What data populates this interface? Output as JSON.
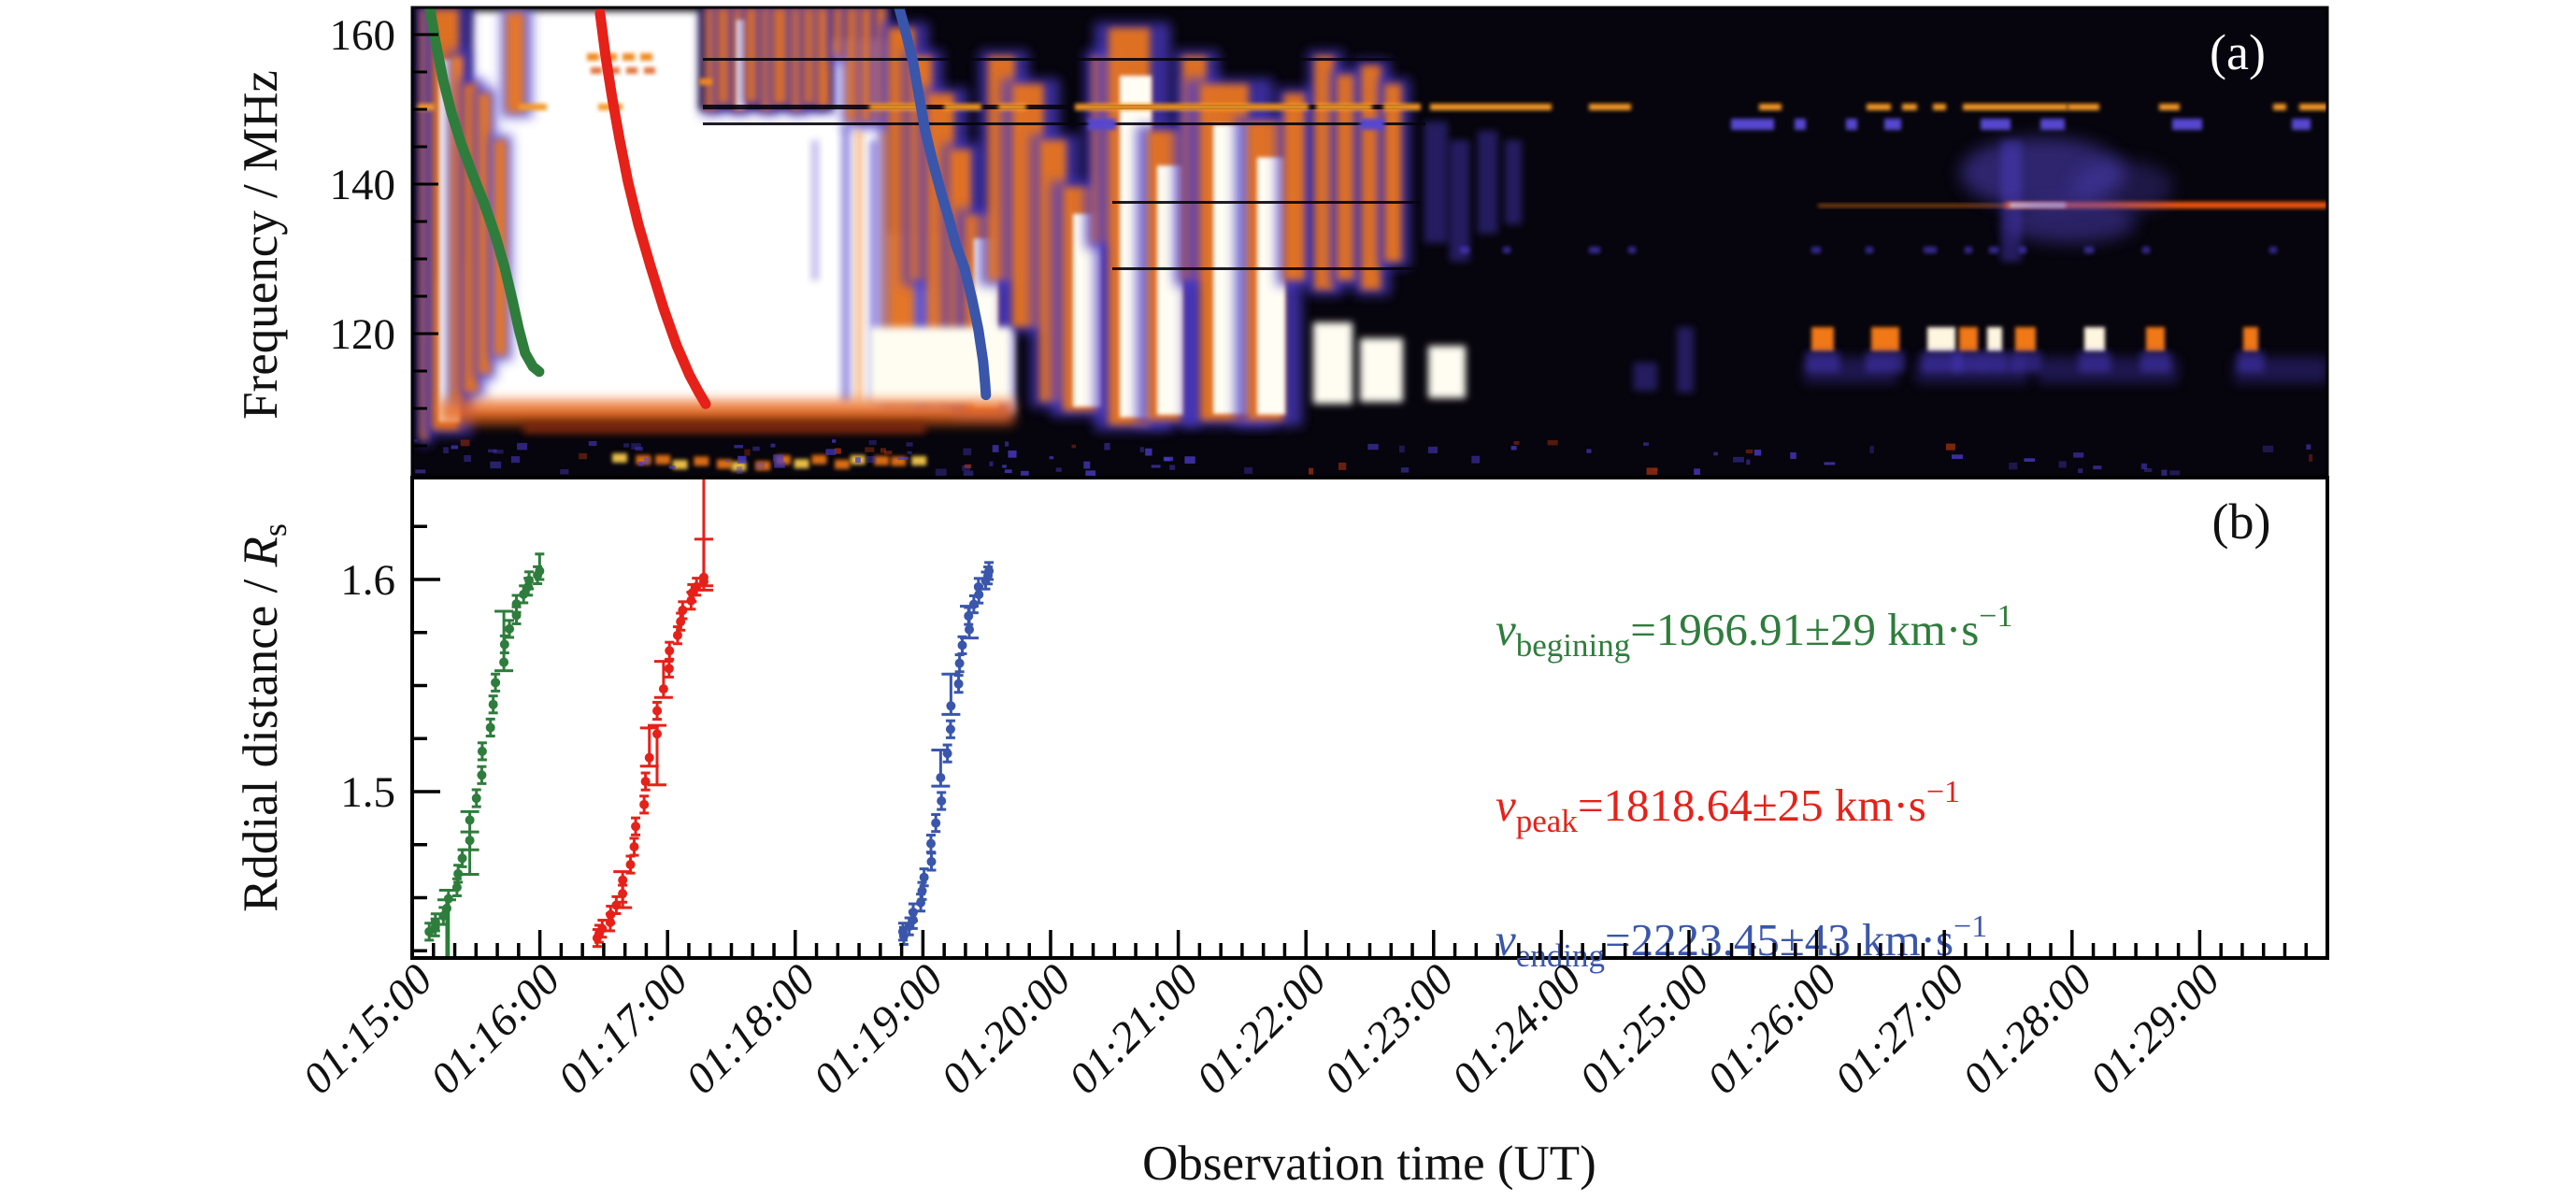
{
  "chart_data": {
    "type": "composite",
    "figure_kind": [
      "heatmap",
      "scatter"
    ],
    "x_axis": {
      "title": "Observation time (UT)",
      "start": "01:15:00",
      "end": "01:30:00",
      "tick_labels": [
        "01:15:00",
        "01:16:00",
        "01:17:00",
        "01:18:00",
        "01:19:00",
        "01:20:00",
        "01:21:00",
        "01:22:00",
        "01:23:00",
        "01:24:00",
        "01:25:00",
        "01:26:00",
        "01:27:00",
        "01:28:00",
        "01:29:00"
      ],
      "major_tick_interval_s": 60,
      "minor_tick_interval_s": 10
    },
    "panel_a": {
      "label": "(a)",
      "type": "heatmap",
      "ylabel": "Frequency / MHz",
      "y_tick_labels": [
        "160",
        "140",
        "120"
      ],
      "y_ticks": [
        160,
        140,
        120
      ],
      "y_minor_step_mhz": 5,
      "y_range_mhz": [
        100.8,
        163.6
      ],
      "grid": false,
      "tracks": [
        {
          "name": "beginning-track",
          "color": "#2e7d3c",
          "points_t_s_f_mhz": [
            [
              8.3,
              163.4
            ],
            [
              11,
              159.0
            ],
            [
              14.5,
              154.0
            ],
            [
              18.4,
              149.6
            ],
            [
              22.8,
              145.6
            ],
            [
              28.1,
              141.5
            ],
            [
              33.8,
              137.4
            ],
            [
              39.1,
              133.1
            ],
            [
              43.5,
              128.8
            ],
            [
              47,
              124.6
            ],
            [
              50.1,
              120.6
            ],
            [
              53.1,
              117.4
            ],
            [
              56.7,
              115.6
            ],
            [
              59.7,
              114.9
            ]
          ]
        },
        {
          "name": "peak-track",
          "color": "#e62119",
          "points_t_s_f_mhz": [
            [
              88.3,
              162.8
            ],
            [
              90.9,
              157.1
            ],
            [
              94,
              151.5
            ],
            [
              97.5,
              145.9
            ],
            [
              101.4,
              140.3
            ],
            [
              106.3,
              134.6
            ],
            [
              112,
              129.0
            ],
            [
              118.1,
              123.4
            ],
            [
              124.3,
              118.4
            ],
            [
              130.4,
              114.4
            ],
            [
              134.8,
              112.1
            ],
            [
              137.9,
              110.6
            ]
          ]
        },
        {
          "name": "ending-track",
          "color": "#3a56ab",
          "points_t_s_f_mhz": [
            [
              228.8,
              163.6
            ],
            [
              231.4,
              160.9
            ],
            [
              235.4,
              156.3
            ],
            [
              238,
              152.1
            ],
            [
              241.1,
              147.1
            ],
            [
              244.6,
              143.0
            ],
            [
              248.6,
              138.8
            ],
            [
              252.1,
              135.5
            ],
            [
              255.6,
              131.8
            ],
            [
              259.5,
              128.8
            ],
            [
              263.1,
              124.6
            ],
            [
              266.1,
              120.5
            ],
            [
              268.3,
              116.3
            ],
            [
              269.2,
              113.4
            ],
            [
              269.6,
              111.8
            ]
          ]
        }
      ]
    },
    "panel_b": {
      "label": "(b)",
      "type": "scatter",
      "ylabel_prefix": "Rddial distance / ",
      "ylabel_symbol": "R",
      "ylabel_symbol_sub": "s",
      "y_tick_labels": [
        "1.6",
        "1.5"
      ],
      "y_ticks": [
        1.6,
        1.5
      ],
      "y_minor_step": 0.025,
      "y_range": [
        1.422,
        1.648
      ],
      "grid": false,
      "series": [
        {
          "name": "beginning-series",
          "color": "#2e7d3c",
          "points_t_s_r": [
            [
              8,
              1.434,
              0.004,
              0.004
            ],
            [
              10,
              1.436,
              0.004,
              0.004
            ],
            [
              12,
              1.4384,
              0.004,
              0.004
            ],
            [
              14,
              1.4414,
              0.004,
              0.004
            ],
            [
              16,
              1.445,
              0.036,
              0.004
            ],
            [
              18,
              1.4495,
              0.04,
              0.004
            ],
            [
              20,
              1.4549,
              0.004,
              0.004
            ],
            [
              22,
              1.4613,
              0.004,
              0.004
            ],
            [
              24,
              1.4686,
              0.004,
              0.004
            ],
            [
              26,
              1.477,
              0.016,
              0.004
            ],
            [
              28,
              1.4866,
              0.014,
              0.004
            ],
            [
              30,
              1.4969,
              0.004,
              0.004
            ],
            [
              32,
              1.5078,
              0.004,
              0.004
            ],
            [
              34,
              1.519,
              0.004,
              0.004
            ],
            [
              36,
              1.5302,
              0.004,
              0.004
            ],
            [
              38,
              1.5411,
              0.004,
              0.004
            ],
            [
              40,
              1.5514,
              0.004,
              0.004
            ],
            [
              42,
              1.561,
              0.004,
              0.024
            ],
            [
              44,
              1.5694,
              0.004,
              0.004
            ],
            [
              46,
              1.5767,
              0.004,
              0.004
            ],
            [
              48,
              1.5831,
              0.004,
              0.004
            ],
            [
              50,
              1.5885,
              0.004,
              0.004
            ],
            [
              52,
              1.593,
              0.004,
              0.004
            ],
            [
              54,
              1.5966,
              0.004,
              0.004
            ],
            [
              56,
              1.5996,
              0.004,
              0.004
            ],
            [
              58,
              1.602,
              0.004,
              0.004
            ],
            [
              60,
              1.604,
              0.004,
              0.008
            ]
          ]
        },
        {
          "name": "peak-series",
          "color": "#e62119",
          "points_t_s_r": [
            [
              86,
              1.431,
              0.004,
              0.004
            ],
            [
              88,
              1.433,
              0.004,
              0.004
            ],
            [
              90,
              1.4354,
              0.004,
              0.004
            ],
            [
              92,
              1.4384,
              0.004,
              0.004
            ],
            [
              94,
              1.442,
              0.004,
              0.004
            ],
            [
              96,
              1.4465,
              0.004,
              0.004
            ],
            [
              98,
              1.4519,
              0.004,
              0.004
            ],
            [
              100,
              1.4583,
              0.013,
              0.004
            ],
            [
              102,
              1.4656,
              0.004,
              0.004
            ],
            [
              104,
              1.474,
              0.004,
              0.004
            ],
            [
              106,
              1.4836,
              0.004,
              0.004
            ],
            [
              108,
              1.4939,
              0.004,
              0.004
            ],
            [
              110,
              1.5048,
              0.004,
              0.004
            ],
            [
              112,
              1.516,
              0.004,
              0.014
            ],
            [
              114,
              1.5272,
              0.024,
              0.004
            ],
            [
              116,
              1.5381,
              0.004,
              0.004
            ],
            [
              118,
              1.5484,
              0.004,
              0.013
            ],
            [
              120,
              1.558,
              0.004,
              0.004
            ],
            [
              122,
              1.5664,
              0.004,
              0.004
            ],
            [
              124,
              1.5737,
              0.004,
              0.004
            ],
            [
              126,
              1.5801,
              0.004,
              0.004
            ],
            [
              128,
              1.5855,
              0.004,
              0.004
            ],
            [
              130,
              1.59,
              0.004,
              0.004
            ],
            [
              132,
              1.5936,
              0.004,
              0.004
            ],
            [
              134,
              1.5966,
              0.004,
              0.004
            ],
            [
              136,
              1.599,
              0.004,
              0.02
            ],
            [
              138,
              1.601,
              0.004,
              0.047
            ]
          ]
        },
        {
          "name": "ending-series",
          "color": "#3a56ab",
          "points_t_s_r": [
            [
              230,
              1.432,
              0.004,
              0.004
            ],
            [
              231.6,
              1.434,
              0.004,
              0.004
            ],
            [
              233.2,
              1.4365,
              0.004,
              0.004
            ],
            [
              234.8,
              1.4395,
              0.004,
              0.004
            ],
            [
              236.5,
              1.4431,
              0.004,
              0.004
            ],
            [
              238.1,
              1.4477,
              0.004,
              0.004
            ],
            [
              239.7,
              1.4532,
              0.004,
              0.004
            ],
            [
              241.3,
              1.4596,
              0.004,
              0.004
            ],
            [
              242.9,
              1.467,
              0.004,
              0.004
            ],
            [
              244.5,
              1.4755,
              0.004,
              0.004
            ],
            [
              246.2,
              1.4852,
              0.004,
              0.004
            ],
            [
              247.8,
              1.4956,
              0.004,
              0.004
            ],
            [
              249.4,
              1.5066,
              0.004,
              0.013
            ],
            [
              251,
              1.518,
              0.004,
              0.004
            ],
            [
              252.6,
              1.5294,
              0.004,
              0.004
            ],
            [
              254.2,
              1.5404,
              0.004,
              0.015
            ],
            [
              255.8,
              1.5508,
              0.004,
              0.004
            ],
            [
              257.5,
              1.5605,
              0.004,
              0.004
            ],
            [
              259.1,
              1.569,
              0.004,
              0.004
            ],
            [
              260.7,
              1.5764,
              0.004,
              0.011
            ],
            [
              262.3,
              1.5828,
              0.004,
              0.004
            ],
            [
              263.9,
              1.5883,
              0.004,
              0.004
            ],
            [
              265.5,
              1.5929,
              0.004,
              0.004
            ],
            [
              267.2,
              1.5965,
              0.004,
              0.004
            ],
            [
              268.8,
              1.5995,
              0.004,
              0.004
            ],
            [
              270.4,
              1.6019,
              0.004,
              0.004
            ],
            [
              272,
              1.604,
              0.004,
              0.004
            ]
          ]
        }
      ],
      "annotations": [
        {
          "name": "v-beginning",
          "prefix": "v",
          "sub": "begining",
          "rhs": "=1966.91±29 km·s",
          "sup": "−1",
          "color": "#2e7d3c"
        },
        {
          "name": "v-peak",
          "prefix": "v",
          "sub": "peak",
          "rhs": "=1818.64±25 km·s",
          "sup": "−1",
          "color": "#e62119"
        },
        {
          "name": "v-ending",
          "prefix": "v",
          "sub": "ending",
          "rhs": "=2223.45±43 km·s",
          "sup": "−1",
          "color": "#3a56ab"
        }
      ]
    }
  }
}
